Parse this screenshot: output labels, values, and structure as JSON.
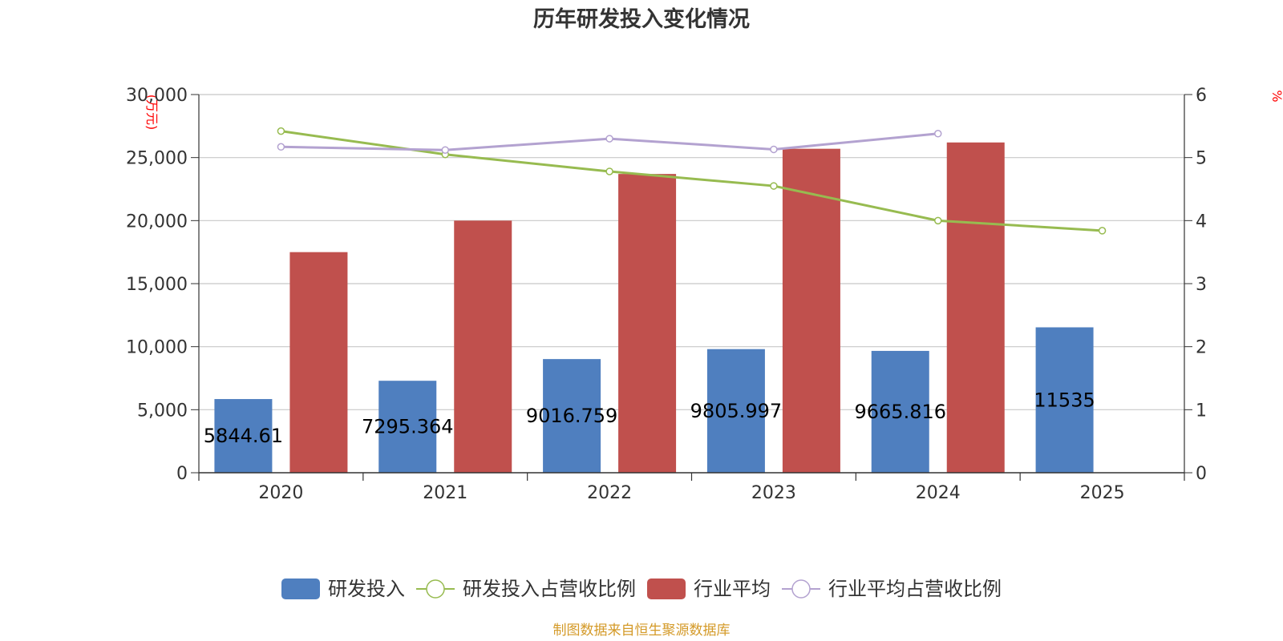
{
  "chart_data": {
    "type": "bar",
    "title": "历年研发投入变化情况",
    "categories": [
      "2020",
      "2021",
      "2022",
      "2023",
      "2024",
      "2025"
    ],
    "y_left": {
      "unit": "(万元)",
      "ticks": [
        "0",
        "5,000",
        "10,000",
        "15,000",
        "20,000",
        "25,000",
        "30,000"
      ],
      "min": 0,
      "max": 30000
    },
    "y_right": {
      "unit": "%",
      "ticks": [
        "0",
        "1",
        "2",
        "3",
        "4",
        "5",
        "6"
      ],
      "min": 0,
      "max": 6
    },
    "grid": true,
    "legend_position": "bottom",
    "series": [
      {
        "name": "研发投入",
        "type": "bar",
        "axis": "left",
        "color": "#4f7fbf",
        "values": [
          5844.61,
          7295.364,
          9016.759,
          9805.997,
          9665.816,
          11535
        ],
        "labels": [
          "5844.61",
          "7295.364",
          "9016.759",
          "9805.997",
          "9665.816",
          "11535"
        ]
      },
      {
        "name": "研发投入占营收比例",
        "type": "line",
        "axis": "right",
        "color": "#97bb50",
        "values": [
          5.42,
          5.05,
          4.78,
          4.55,
          4.0,
          3.84
        ]
      },
      {
        "name": "行业平均",
        "type": "bar",
        "axis": "left",
        "color": "#c0504d",
        "values": [
          17500,
          20000,
          23700,
          25700,
          26200,
          null
        ]
      },
      {
        "name": "行业平均占营收比例",
        "type": "line",
        "axis": "right",
        "color": "#b3a2d0",
        "values": [
          5.17,
          5.12,
          5.3,
          5.13,
          5.38,
          null
        ]
      }
    ]
  },
  "footer": {
    "source": "制图数据来自恒生聚源数据库"
  },
  "colors": {
    "axis": "#333333",
    "grid": "#c8c8c8",
    "unit_label": "#ff0000",
    "source": "#d49a28"
  }
}
